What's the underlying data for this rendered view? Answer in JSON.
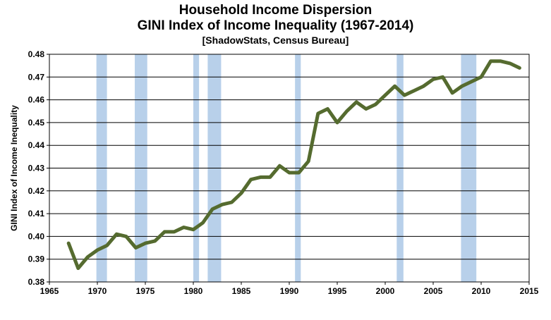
{
  "chart_data": {
    "type": "line",
    "title": "Household Income Dispersion",
    "subtitle": "GINI Index of Income Inequality (1967-2014)",
    "source": "[ShadowStats, Census Bureau]",
    "xlabel": "",
    "ylabel": "GINI Index of Income Inequality",
    "xlim": [
      1965,
      2015
    ],
    "ylim": [
      0.38,
      0.48
    ],
    "xticks": [
      "1965",
      "1970",
      "1975",
      "1980",
      "1985",
      "1990",
      "1995",
      "2000",
      "2005",
      "2010",
      "2015"
    ],
    "yticks": [
      "0.38",
      "0.39",
      "0.40",
      "0.41",
      "0.42",
      "0.43",
      "0.44",
      "0.45",
      "0.46",
      "0.47",
      "0.48"
    ],
    "grid": "horizontal",
    "series_color": "#556b2f",
    "recession_color": "#b8d0ea",
    "recessions": [
      [
        1969.9,
        1971.0
      ],
      [
        1973.9,
        1975.2
      ],
      [
        1980.0,
        1980.6
      ],
      [
        1981.5,
        1982.9
      ],
      [
        1990.6,
        1991.2
      ],
      [
        2001.2,
        2001.9
      ],
      [
        2007.9,
        2009.5
      ]
    ],
    "x": [
      1967,
      1968,
      1969,
      1970,
      1971,
      1972,
      1973,
      1974,
      1975,
      1976,
      1977,
      1978,
      1979,
      1980,
      1981,
      1982,
      1983,
      1984,
      1985,
      1986,
      1987,
      1988,
      1989,
      1990,
      1991,
      1992,
      1993,
      1994,
      1995,
      1996,
      1997,
      1998,
      1999,
      2000,
      2001,
      2002,
      2003,
      2004,
      2005,
      2006,
      2007,
      2008,
      2009,
      2010,
      2011,
      2012,
      2013,
      2014
    ],
    "y": [
      0.397,
      0.386,
      0.391,
      0.394,
      0.396,
      0.401,
      0.4,
      0.395,
      0.397,
      0.398,
      0.402,
      0.402,
      0.404,
      0.403,
      0.406,
      0.412,
      0.414,
      0.415,
      0.419,
      0.425,
      0.426,
      0.426,
      0.431,
      0.428,
      0.428,
      0.433,
      0.454,
      0.456,
      0.45,
      0.455,
      0.459,
      0.456,
      0.458,
      0.462,
      0.466,
      0.462,
      0.464,
      0.466,
      0.469,
      0.47,
      0.463,
      0.466,
      0.468,
      0.47,
      0.477,
      0.477,
      0.476,
      0.474
    ]
  }
}
